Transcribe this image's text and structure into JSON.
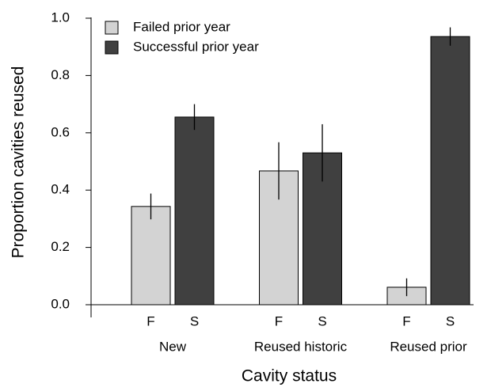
{
  "chart_data": {
    "type": "bar",
    "y_label": "Proportion cavities reused",
    "x_label": "Cavity status",
    "categories": [
      "New",
      "Reused historic",
      "Reused prior"
    ],
    "series": [
      {
        "name": "Failed prior year",
        "short": "F",
        "color": "#d3d3d3",
        "values": [
          0.343,
          0.467,
          0.061
        ],
        "errors": [
          0.045,
          0.1,
          0.031
        ]
      },
      {
        "name": "Successful prior year",
        "short": "S",
        "color": "#404040",
        "values": [
          0.655,
          0.53,
          0.936
        ],
        "errors": [
          0.045,
          0.1,
          0.032
        ]
      }
    ],
    "ylim": [
      0,
      1
    ],
    "yticks": [
      {
        "value": 0,
        "label": "0.0"
      },
      0.2,
      0.4,
      0.6,
      0.8,
      {
        "value": 1,
        "label": "1.0"
      }
    ],
    "legend": "top-left"
  }
}
